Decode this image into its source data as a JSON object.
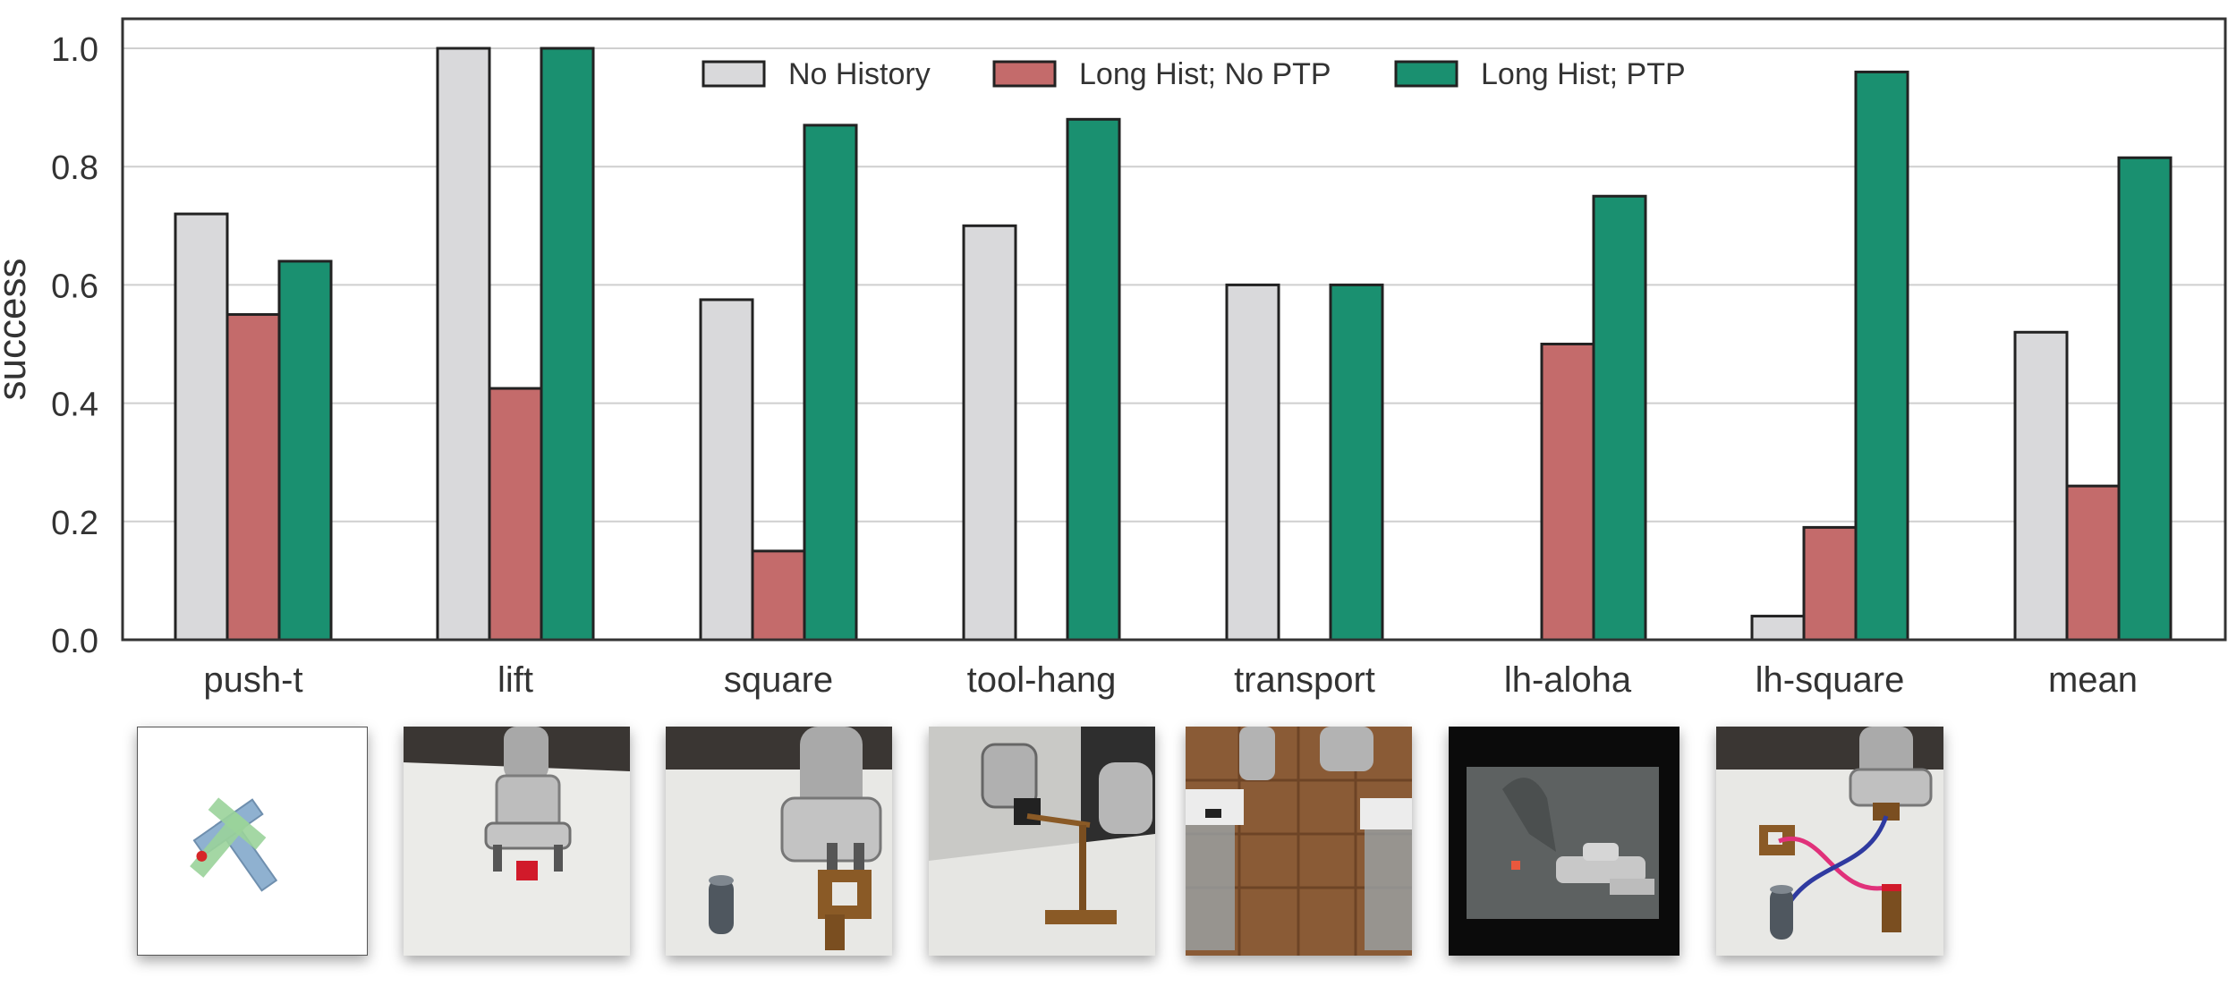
{
  "chart_data": {
    "type": "bar",
    "ylabel": "success",
    "ylim": [
      0.0,
      1.05
    ],
    "yticks": [
      "0.0",
      "0.2",
      "0.4",
      "0.6",
      "0.8",
      "1.0"
    ],
    "grid": true,
    "legend_position": "top-center",
    "categories": [
      "push-t",
      "lift",
      "square",
      "tool-hang",
      "transport",
      "lh-aloha",
      "lh-square",
      "mean"
    ],
    "series": [
      {
        "name": "No History",
        "color": "#d9d9db",
        "values": [
          0.72,
          1.0,
          0.575,
          0.7,
          0.6,
          0.0,
          0.04,
          0.52
        ]
      },
      {
        "name": "Long Hist; No PTP",
        "color": "#c46b6b",
        "values": [
          0.55,
          0.425,
          0.15,
          0.0,
          0.0,
          0.5,
          0.19,
          0.26
        ]
      },
      {
        "name": "Long Hist; PTP",
        "color": "#1a9070",
        "values": [
          0.64,
          1.0,
          0.87,
          0.88,
          0.6,
          0.75,
          0.96,
          0.815
        ]
      }
    ]
  },
  "thumbnails": [
    {
      "task": "push-t",
      "icon": "push-t-scene-icon"
    },
    {
      "task": "lift",
      "icon": "lift-scene-icon"
    },
    {
      "task": "square",
      "icon": "square-scene-icon"
    },
    {
      "task": "tool-hang",
      "icon": "tool-hang-scene-icon"
    },
    {
      "task": "transport",
      "icon": "transport-scene-icon"
    },
    {
      "task": "lh-aloha",
      "icon": "lh-aloha-scene-icon"
    },
    {
      "task": "lh-square",
      "icon": "lh-square-scene-icon"
    }
  ]
}
